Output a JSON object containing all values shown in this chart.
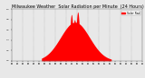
{
  "fill_color": "#ff0000",
  "line_color": "#dd0000",
  "background_color": "#e8e8e8",
  "plot_bg_color": "#e8e8e8",
  "grid_color": "#888888",
  "legend_color": "#ff0000",
  "ylim": [
    0,
    1
  ],
  "xlim": [
    0,
    1440
  ],
  "sunrise_minute": 330,
  "sunset_minute": 1100,
  "peak_minute": 700,
  "num_points": 1440,
  "title_fontsize": 3.5,
  "tick_fontsize": 1.6
}
